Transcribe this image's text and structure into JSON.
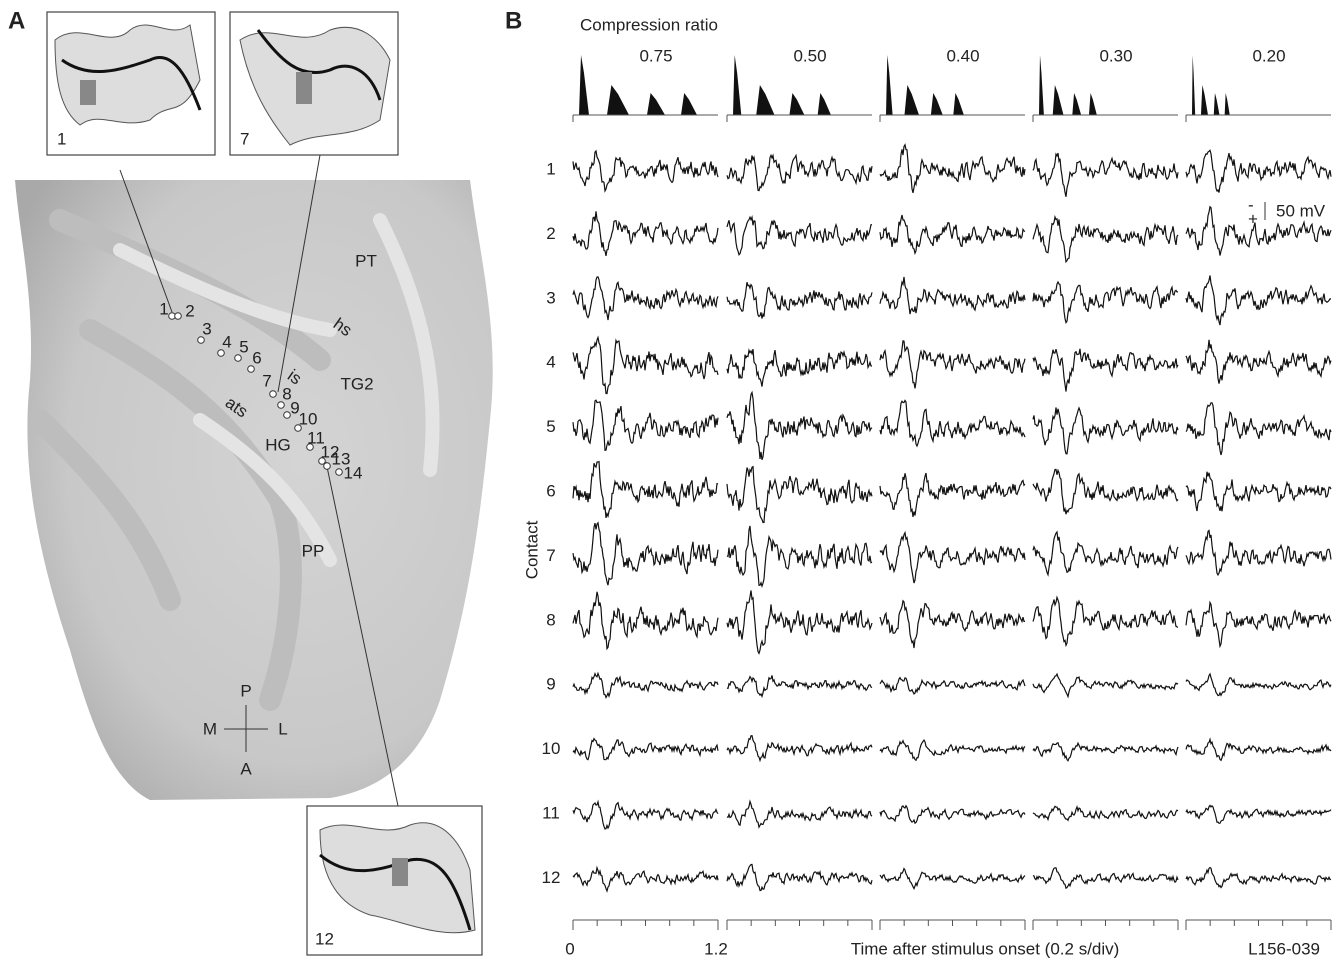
{
  "panel_a": {
    "label": "A",
    "insets": [
      "1",
      "7",
      "12"
    ],
    "regions": {
      "pt": "PT",
      "hs": "hs",
      "tg2": "TG2",
      "is": "is",
      "ats": "ats",
      "hg": "HG",
      "pp": "PP"
    },
    "contacts": [
      "1",
      "2",
      "3",
      "4",
      "5",
      "6",
      "7",
      "8",
      "9",
      "10",
      "11",
      "12",
      "13",
      "14"
    ],
    "orientation": {
      "p": "P",
      "m": "M",
      "l": "L",
      "a": "A"
    }
  },
  "panel_b": {
    "label": "B",
    "compression_title": "Compression ratio",
    "ratios": [
      "0.75",
      "0.50",
      "0.40",
      "0.30",
      "0.20"
    ],
    "y_label": "Contact",
    "contacts": [
      "1",
      "2",
      "3",
      "4",
      "5",
      "6",
      "7",
      "8",
      "9",
      "10",
      "11",
      "12"
    ],
    "scale": {
      "minus": "-",
      "plus": "+",
      "label": "50 mV"
    },
    "x_start": "0",
    "x_end": "1.2",
    "x_label": "Time after stimulus onset (0.2 s/div)",
    "recording_id": "L156-039"
  }
}
